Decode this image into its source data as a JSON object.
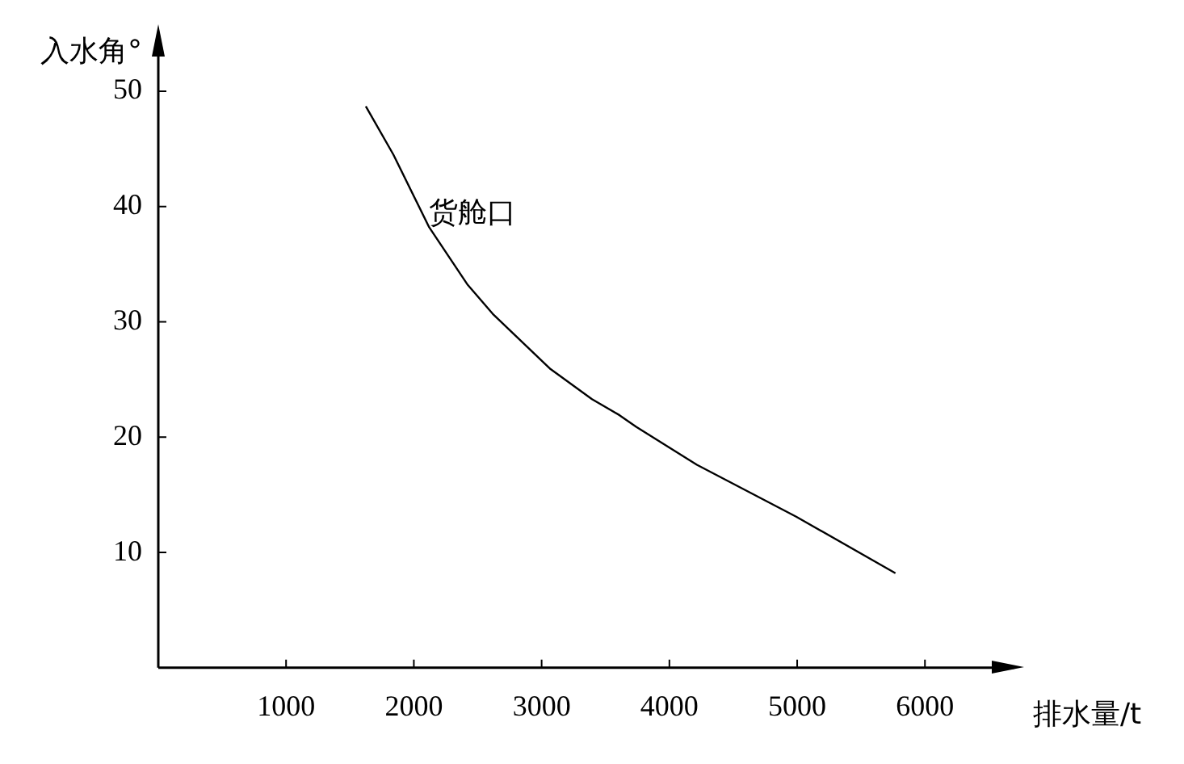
{
  "chart_data": {
    "type": "line",
    "xlabel": "排水量/t",
    "ylabel": "入水角°",
    "x": [
      1624,
      1840,
      2120,
      2422,
      2617,
      3070,
      3394,
      3610,
      3740,
      4215,
      4992,
      5769
    ],
    "values": [
      48.7,
      44.5,
      38.2,
      33.2,
      30.7,
      25.9,
      23.3,
      21.9,
      20.9,
      17.6,
      13.1,
      8.2
    ],
    "color": "#000000",
    "marker": "none",
    "line_style": "solid",
    "grid": false,
    "legend": false,
    "xlim": [
      0,
      6700
    ],
    "ylim": [
      0,
      55
    ],
    "xticks": [
      1000,
      2000,
      3000,
      4000,
      5000,
      6000
    ],
    "yticks": [
      10,
      20,
      30,
      40,
      50
    ],
    "annotations": [
      {
        "text": "货舱口",
        "x": 2120,
        "y": 39.3
      }
    ]
  }
}
